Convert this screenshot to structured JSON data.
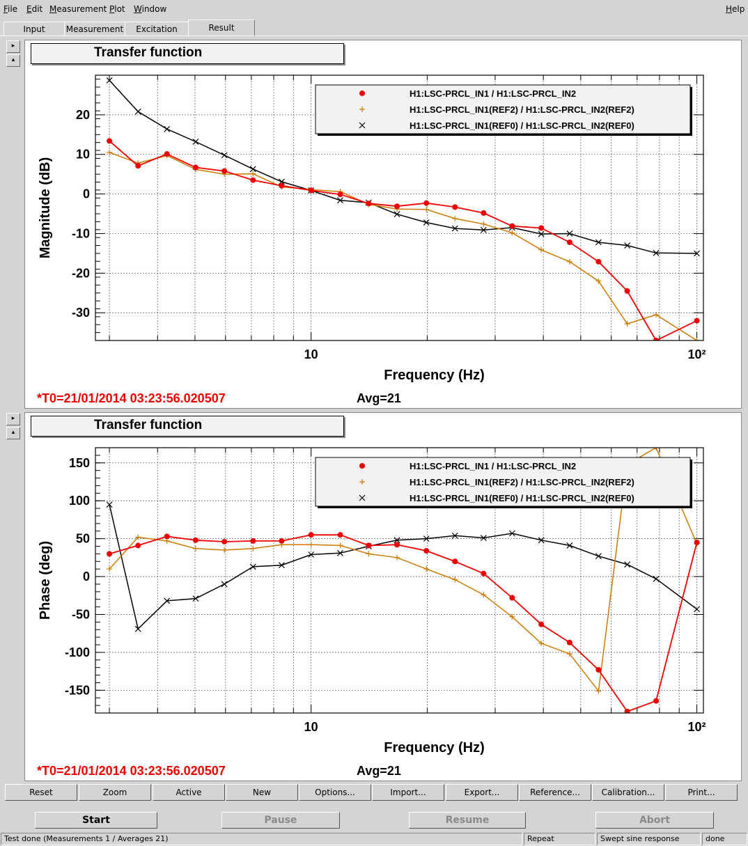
{
  "menu": {
    "file": "File",
    "edit": "Edit",
    "measurement": "Measurement",
    "plot": "Plot",
    "window": "Window",
    "help": "Help"
  },
  "tabs": {
    "input": "Input",
    "measurement": "Measurement",
    "excitation": "Excitation",
    "result": "Result"
  },
  "side_buttons": {
    "expand": "▸",
    "collapse": "▴"
  },
  "plots": [
    {
      "title": "Transfer function",
      "time": "*T0=21/01/2014 03:23:56.020507",
      "avg": "Avg=21"
    },
    {
      "title": "Transfer function",
      "time": "*T0=21/01/2014 03:23:56.020507",
      "avg": "Avg=21"
    }
  ],
  "legend": [
    "H1:LSC-PRCL_IN1 / H1:LSC-PRCL_IN2",
    "H1:LSC-PRCL_IN1(REF2) / H1:LSC-PRCL_IN2(REF2)",
    "H1:LSC-PRCL_IN1(REF0) / H1:LSC-PRCL_IN2(REF0)"
  ],
  "colors": {
    "series0": "#ee0000",
    "series1": "#cc7a00",
    "series2": "#000000"
  },
  "chart_data": [
    {
      "type": "line",
      "title": "Transfer function",
      "xlabel": "Frequency (Hz)",
      "ylabel": "Magnitude (dB)",
      "xscale": "log",
      "xlim": [
        2.76,
        104
      ],
      "ylim": [
        -37,
        30
      ],
      "yticks": [
        -30,
        -20,
        -10,
        0,
        10,
        20
      ],
      "xticks": [
        {
          "value": 10,
          "label": "10"
        },
        {
          "value": 100,
          "label": "10²"
        }
      ],
      "grid": true,
      "legend_position": "top-right",
      "x": [
        3,
        3.56,
        4.23,
        5.02,
        5.96,
        7.07,
        8.39,
        10,
        11.9,
        14.1,
        16.7,
        19.9,
        23.6,
        28,
        33.2,
        39.5,
        46.8,
        55.6,
        66,
        78.4,
        100
      ],
      "series": [
        {
          "name": "H1:LSC-PRCL_IN1 / H1:LSC-PRCL_IN2",
          "values": [
            13.4,
            7.1,
            10.1,
            6.7,
            5.8,
            3.5,
            2.1,
            0.9,
            -0.1,
            -2.4,
            -3.1,
            -2.3,
            -3.3,
            -4.8,
            -8.1,
            -8.6,
            -12.2,
            -17.1,
            -24.5,
            -37,
            -32
          ]
        },
        {
          "name": "H1:LSC-PRCL_IN1(REF2) / H1:LSC-PRCL_IN2(REF2)",
          "values": [
            10.5,
            7.8,
            9.7,
            6.2,
            5.0,
            5.1,
            1.8,
            1.1,
            0.6,
            -2.6,
            -3.8,
            -3.9,
            -6.2,
            -7.6,
            -9.8,
            -14.1,
            -17.1,
            -22,
            -32.8,
            -30.5,
            -37
          ]
        },
        {
          "name": "H1:LSC-PRCL_IN1(REF0) / H1:LSC-PRCL_IN2(REF0)",
          "values": [
            28.7,
            20.8,
            16.4,
            13.2,
            9.8,
            6.3,
            3.1,
            0.9,
            -1.6,
            -2.2,
            -5.1,
            -7.2,
            -8.7,
            -9.1,
            -8.5,
            -10.1,
            -10,
            -12.2,
            -13,
            -14.9,
            -15
          ]
        }
      ]
    },
    {
      "type": "line",
      "title": "Transfer function",
      "xlabel": "Frequency (Hz)",
      "ylabel": "Phase (deg)",
      "xscale": "log",
      "xlim": [
        2.76,
        104
      ],
      "ylim": [
        -180,
        170
      ],
      "yticks": [
        -150,
        -100,
        -50,
        0,
        50,
        100,
        150
      ],
      "xticks": [
        {
          "value": 10,
          "label": "10"
        },
        {
          "value": 100,
          "label": "10²"
        }
      ],
      "grid": true,
      "legend_position": "top-right",
      "x": [
        3,
        3.56,
        4.23,
        5.02,
        5.96,
        7.07,
        8.39,
        10,
        11.9,
        14.1,
        16.7,
        19.9,
        23.6,
        28,
        33.2,
        39.5,
        46.8,
        55.6,
        66,
        78.4,
        100
      ],
      "series": [
        {
          "name": "H1:LSC-PRCL_IN1 / H1:LSC-PRCL_IN2",
          "values": [
            30,
            41,
            53,
            48,
            46,
            47,
            47,
            55,
            55,
            41,
            42,
            34,
            20,
            4,
            -28,
            -63,
            -87,
            -123,
            -178,
            -164,
            45
          ]
        },
        {
          "name": "H1:LSC-PRCL_IN1(REF2) / H1:LSC-PRCL_IN2(REF2)",
          "values": [
            10,
            52,
            47,
            37,
            35,
            37,
            42,
            42,
            41,
            30,
            25,
            10,
            -4,
            -24,
            -53,
            -88,
            -102,
            -151,
            148,
            170,
            43
          ]
        },
        {
          "name": "H1:LSC-PRCL_IN1(REF0) / H1:LSC-PRCL_IN2(REF0)",
          "values": [
            95,
            -69,
            -32,
            -29,
            -10,
            13,
            15,
            29,
            31,
            40,
            48,
            50,
            54,
            51,
            57,
            48,
            41,
            27,
            16,
            -3,
            -43
          ]
        }
      ]
    }
  ],
  "action_buttons": [
    "Reset",
    "Zoom",
    "Active",
    "New",
    "Options...",
    "Import...",
    "Export...",
    "Reference...",
    "Calibration...",
    "Print..."
  ],
  "control_buttons": {
    "start": "Start",
    "pause": "Pause",
    "resume": "Resume",
    "abort": "Abort"
  },
  "statusbar": {
    "message": "Test done (Measurements 1 / Averages 21)",
    "repeat": "Repeat",
    "type": "Swept sine response",
    "state": "done"
  }
}
